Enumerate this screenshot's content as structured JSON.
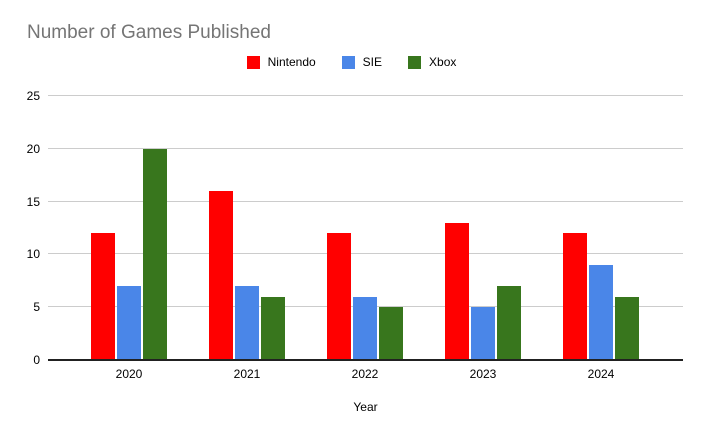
{
  "title": "Number of Games Published",
  "chart_data": {
    "type": "bar",
    "title": "Number of Games Published",
    "categories": [
      "2020",
      "2021",
      "2022",
      "2023",
      "2024"
    ],
    "series": [
      {
        "name": "Nintendo",
        "color": "#ff0000",
        "values": [
          12,
          16,
          12,
          13,
          12
        ]
      },
      {
        "name": "SIE",
        "color": "#4a86e8",
        "values": [
          7,
          7,
          6,
          5,
          9
        ]
      },
      {
        "name": "Xbox",
        "color": "#38761d",
        "values": [
          20,
          6,
          5,
          7,
          6
        ]
      }
    ],
    "xlabel": "Year",
    "ylabel": "",
    "ylim": [
      0,
      25
    ],
    "yticks": [
      0,
      5,
      10,
      15,
      20,
      25
    ],
    "grid": true,
    "legend_position": "top"
  },
  "colors": {
    "title_text": "#757575",
    "axis_text": "#000000",
    "gridline": "#cccccc",
    "baseline": "#212121",
    "background": "#ffffff"
  }
}
